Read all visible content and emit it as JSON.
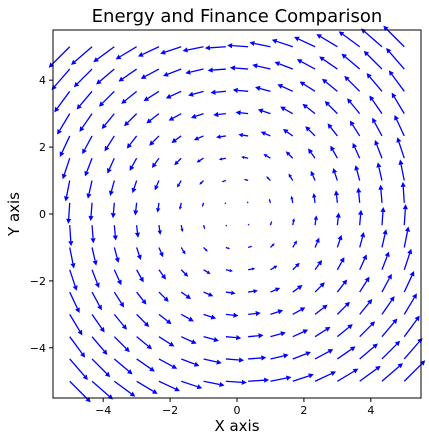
{
  "chart_data": {
    "type": "quiver",
    "title": "Energy and Finance Comparison",
    "xlabel": "X axis",
    "ylabel": "Y axis",
    "xlim": [
      -5.5,
      5.5
    ],
    "ylim": [
      -5.5,
      5.5
    ],
    "xticks": [
      -4,
      -2,
      0,
      2,
      4
    ],
    "yticks": [
      -4,
      -2,
      0,
      2,
      4
    ],
    "xtick_labels": [
      "−4",
      "−2",
      "0",
      "2",
      "4"
    ],
    "ytick_labels": [
      "−4",
      "−2",
      "0",
      "2",
      "4"
    ],
    "grid": false,
    "arrow_color": "#0000ff",
    "field": {
      "x_values": [
        -5.0,
        -4.333,
        -3.667,
        -3.0,
        -2.333,
        -1.667,
        -1.0,
        -0.333,
        0.333,
        1.0,
        1.667,
        2.333,
        3.0,
        3.667,
        4.333,
        5.0
      ],
      "y_values": [
        -5.0,
        -4.333,
        -3.667,
        -3.0,
        -2.333,
        -1.667,
        -1.0,
        -0.333,
        0.333,
        1.0,
        1.667,
        2.333,
        3.0,
        3.667,
        4.333,
        5.0
      ],
      "u": "-y",
      "v": "x"
    }
  }
}
